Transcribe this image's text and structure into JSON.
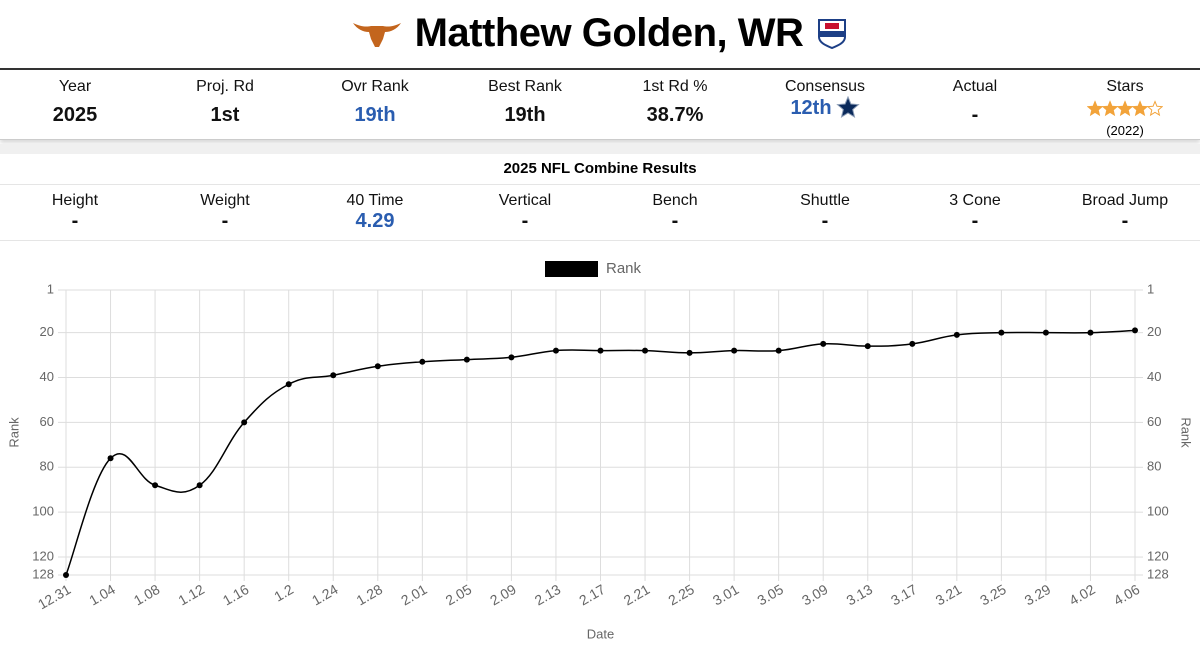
{
  "header": {
    "name": "Matthew Golden, WR"
  },
  "profile": {
    "columns": [
      {
        "label": "Year",
        "value": "2025"
      },
      {
        "label": "Proj. Rd",
        "value": "1st"
      },
      {
        "label": "Ovr Rank",
        "value": "19th"
      },
      {
        "label": "Best Rank",
        "value": "19th"
      },
      {
        "label": "1st Rd %",
        "value": "38.7%"
      },
      {
        "label": "Consensus",
        "value": "12th"
      },
      {
        "label": "Actual",
        "value": "-"
      }
    ],
    "stars": {
      "label": "Stars",
      "rating": 4,
      "out_of": 5,
      "note": "(2022)"
    }
  },
  "combine": {
    "title": "2025 NFL Combine Results",
    "columns": [
      {
        "label": "Height",
        "value": "-"
      },
      {
        "label": "Weight",
        "value": "-"
      },
      {
        "label": "40 Time",
        "value": "4.29"
      },
      {
        "label": "Vertical",
        "value": "-"
      },
      {
        "label": "Bench",
        "value": "-"
      },
      {
        "label": "Shuttle",
        "value": "-"
      },
      {
        "label": "3 Cone",
        "value": "-"
      },
      {
        "label": "Broad Jump",
        "value": "-"
      }
    ]
  },
  "chart_data": {
    "type": "line",
    "x_label": "Date",
    "y_label": "Rank",
    "y2_label": "Rank",
    "categories": [
      "12.31",
      "1.04",
      "1.08",
      "1.12",
      "1.16",
      "1.2",
      "1.24",
      "1.28",
      "2.01",
      "2.05",
      "2.09",
      "2.13",
      "2.17",
      "2.21",
      "2.25",
      "3.01",
      "3.05",
      "3.09",
      "3.13",
      "3.17",
      "3.21",
      "3.25",
      "3.29",
      "4.02",
      "4.06"
    ],
    "series": [
      {
        "name": "Rank",
        "color": "#000000",
        "values": [
          128,
          76,
          88,
          88,
          60,
          43,
          39,
          35,
          33,
          32,
          31,
          28,
          28,
          28,
          29,
          28,
          28,
          25,
          26,
          25,
          21,
          20,
          20,
          20,
          19
        ]
      }
    ],
    "ylim": [
      128,
      1
    ],
    "yticks": [
      1,
      20,
      40,
      60,
      80,
      100,
      120,
      128
    ],
    "y2lim": [
      128,
      1
    ],
    "y2ticks": [
      1,
      20,
      40,
      60,
      80,
      100,
      120,
      128
    ],
    "grid": true,
    "legend": "top"
  }
}
